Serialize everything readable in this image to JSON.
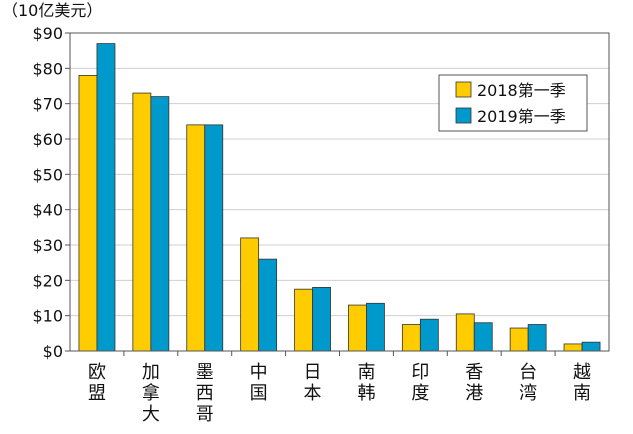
{
  "chart_data": {
    "type": "bar",
    "unit_label": "（10亿美元）",
    "title": "",
    "xlabel": "",
    "ylabel": "",
    "ylim": [
      0,
      90
    ],
    "yticks": [
      "$0",
      "$10",
      "$20",
      "$30",
      "$40",
      "$50",
      "$60",
      "$70",
      "$80",
      "$90"
    ],
    "ytick_values": [
      0,
      10,
      20,
      30,
      40,
      50,
      60,
      70,
      80,
      90
    ],
    "grid": true,
    "legend_position": "top-right",
    "categories": [
      "欧盟",
      "加拿大",
      "墨西哥",
      "中国",
      "日本",
      "南韩",
      "印度",
      "香港",
      "台湾",
      "越南"
    ],
    "series": [
      {
        "name": "2018第一季",
        "color": "#ffcc00",
        "values": [
          78,
          73,
          64,
          32,
          17.5,
          13,
          7.5,
          10.5,
          6.5,
          2
        ]
      },
      {
        "name": "2019第一季",
        "color": "#0099cc",
        "values": [
          87,
          72,
          64,
          26,
          18,
          13.5,
          9,
          8,
          7.5,
          2.5
        ]
      }
    ]
  }
}
